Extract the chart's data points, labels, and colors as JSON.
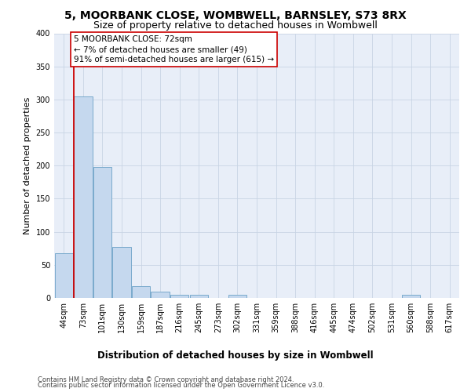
{
  "title": "5, MOORBANK CLOSE, WOMBWELL, BARNSLEY, S73 8RX",
  "subtitle": "Size of property relative to detached houses in Wombwell",
  "xlabel": "Distribution of detached houses by size in Wombwell",
  "ylabel": "Number of detached properties",
  "bin_labels": [
    "44sqm",
    "73sqm",
    "101sqm",
    "130sqm",
    "159sqm",
    "187sqm",
    "216sqm",
    "245sqm",
    "273sqm",
    "302sqm",
    "331sqm",
    "359sqm",
    "388sqm",
    "416sqm",
    "445sqm",
    "474sqm",
    "502sqm",
    "531sqm",
    "560sqm",
    "588sqm",
    "617sqm"
  ],
  "bar_heights": [
    68,
    305,
    198,
    77,
    18,
    10,
    5,
    5,
    0,
    5,
    0,
    0,
    0,
    0,
    0,
    0,
    0,
    0,
    5,
    0,
    0
  ],
  "bar_color": "#c5d8ee",
  "bar_edge_color": "#7aaacc",
  "subject_line_color": "#cc0000",
  "annotation_box_color": "#cc0000",
  "annotation_line1": "5 MOORBANK CLOSE: 72sqm",
  "annotation_line2": "← 7% of detached houses are smaller (49)",
  "annotation_line3": "91% of semi-detached houses are larger (615) →",
  "ylim": [
    0,
    400
  ],
  "yticks": [
    0,
    50,
    100,
    150,
    200,
    250,
    300,
    350,
    400
  ],
  "grid_color": "#c8d4e4",
  "bg_color": "#e8eef8",
  "footer_line1": "Contains HM Land Registry data © Crown copyright and database right 2024.",
  "footer_line2": "Contains public sector information licensed under the Open Government Licence v3.0.",
  "title_fontsize": 10,
  "subtitle_fontsize": 9,
  "xlabel_fontsize": 8.5,
  "ylabel_fontsize": 8,
  "annotation_fontsize": 7.5,
  "footer_fontsize": 6,
  "tick_fontsize": 7
}
